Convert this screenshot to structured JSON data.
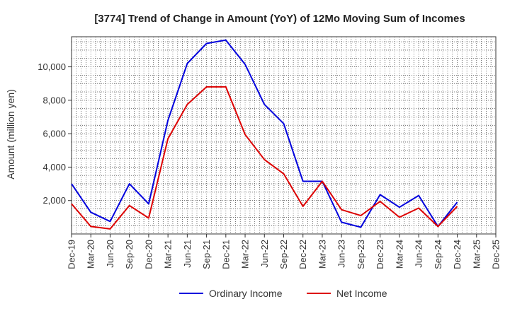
{
  "chart_data": {
    "type": "line",
    "title": "[3774]  Trend of Change in Amount (YoY) of 12Mo Moving Sum of Incomes",
    "ylabel": "Amount (million yen)",
    "xlabel": "",
    "x": [
      "Dec-19",
      "Mar-20",
      "Jun-20",
      "Sep-20",
      "Dec-20",
      "Mar-21",
      "Jun-21",
      "Sep-21",
      "Dec-21",
      "Mar-22",
      "Jun-22",
      "Sep-22",
      "Dec-22",
      "Mar-23",
      "Jun-23",
      "Sep-23",
      "Dec-23",
      "Mar-24",
      "Jun-24",
      "Sep-24",
      "Dec-24"
    ],
    "x_ticks": [
      "Dec-19",
      "Mar-20",
      "Jun-20",
      "Sep-20",
      "Dec-20",
      "Mar-21",
      "Jun-21",
      "Sep-21",
      "Dec-21",
      "Mar-22",
      "Jun-22",
      "Sep-22",
      "Dec-22",
      "Mar-23",
      "Jun-23",
      "Sep-23",
      "Dec-23",
      "Mar-24",
      "Jun-24",
      "Sep-24",
      "Dec-24",
      "Mar-25",
      "Dec-25"
    ],
    "y_ticks": [
      2000,
      4000,
      6000,
      8000,
      10000
    ],
    "y_tick_labels": [
      "2,000",
      "4,000",
      "6,000",
      "8,000",
      "10,000"
    ],
    "ylim": [
      0,
      11800
    ],
    "grid": true,
    "legend_position": "bottom",
    "series": [
      {
        "name": "Ordinary Income",
        "color": "#0000dd",
        "values": [
          3000,
          1300,
          750,
          3000,
          1800,
          6800,
          10200,
          11400,
          11600,
          10150,
          7750,
          6600,
          3150,
          3150,
          700,
          400,
          2350,
          1600,
          2300,
          450,
          1900
        ]
      },
      {
        "name": "Net Income",
        "color": "#dd0000",
        "values": [
          1800,
          450,
          300,
          1700,
          950,
          5700,
          7750,
          8800,
          8800,
          5950,
          4450,
          3600,
          1650,
          3150,
          1450,
          1100,
          1950,
          1000,
          1550,
          450,
          1650
        ]
      }
    ]
  }
}
